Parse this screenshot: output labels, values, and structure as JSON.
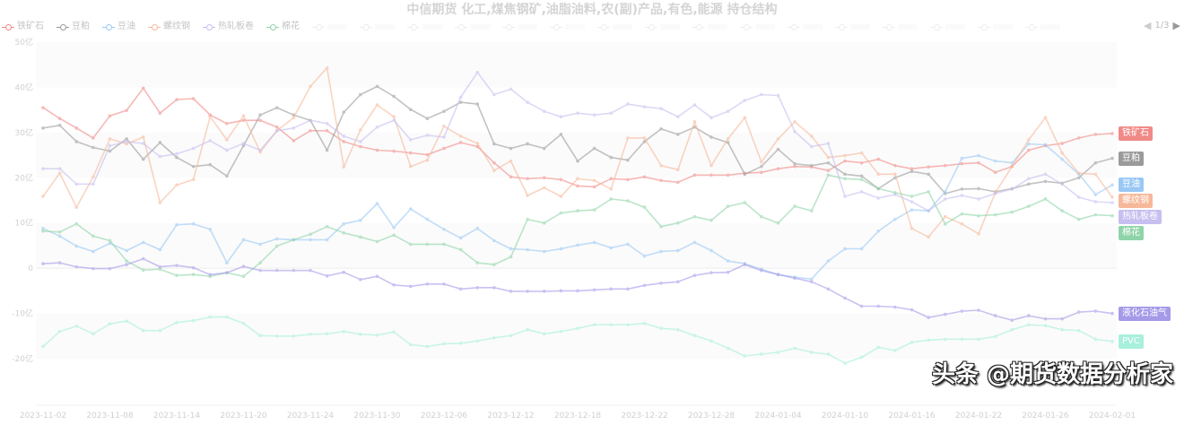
{
  "chart_data": {
    "type": "line",
    "title": "中信期货 化工,煤焦钢矿,油脂油料,农(副)产品,有色,能源 持仓结构",
    "legend_page": "1/3",
    "legend_position": "top",
    "ylim": [
      -20,
      50
    ],
    "y_unit": "亿",
    "y_ticks": [
      "50亿",
      "40亿",
      "30亿",
      "20亿",
      "10亿",
      "0",
      "-10亿",
      "-20亿"
    ],
    "y_tick_values": [
      50,
      40,
      30,
      20,
      10,
      0,
      -10,
      -20
    ],
    "x_tick_labels": [
      "2023-11-02",
      "2023-11-08",
      "2023-11-14",
      "2023-11-20",
      "2023-11-24",
      "2023-11-30",
      "2023-12-06",
      "2023-12-12",
      "2023-12-18",
      "2023-12-22",
      "2023-12-28",
      "2024-01-04",
      "2024-01-10",
      "2024-01-16",
      "2024-01-22",
      "2024-01-26",
      "2024-02-01"
    ],
    "x": [
      "2023-11-02",
      "2023-11-03",
      "2023-11-06",
      "2023-11-07",
      "2023-11-08",
      "2023-11-09",
      "2023-11-10",
      "2023-11-13",
      "2023-11-14",
      "2023-11-15",
      "2023-11-16",
      "2023-11-17",
      "2023-11-20",
      "2023-11-21",
      "2023-11-22",
      "2023-11-23",
      "2023-11-24",
      "2023-11-27",
      "2023-11-28",
      "2023-11-29",
      "2023-11-30",
      "2023-12-01",
      "2023-12-04",
      "2023-12-05",
      "2023-12-06",
      "2023-12-07",
      "2023-12-08",
      "2023-12-11",
      "2023-12-12",
      "2023-12-13",
      "2023-12-14",
      "2023-12-15",
      "2023-12-18",
      "2023-12-19",
      "2023-12-20",
      "2023-12-21",
      "2023-12-22",
      "2023-12-25",
      "2023-12-26",
      "2023-12-27",
      "2023-12-28",
      "2023-12-29",
      "2024-01-02",
      "2024-01-03",
      "2024-01-04",
      "2024-01-05",
      "2024-01-08",
      "2024-01-09",
      "2024-01-10",
      "2024-01-11",
      "2024-01-12",
      "2024-01-15",
      "2024-01-16",
      "2024-01-17",
      "2024-01-18",
      "2024-01-19",
      "2024-01-22",
      "2024-01-23",
      "2024-01-24",
      "2024-01-25",
      "2024-01-26",
      "2024-01-29",
      "2024-01-30",
      "2024-01-31",
      "2024-02-01"
    ],
    "grid": false,
    "series": [
      {
        "name": "铁矿石",
        "color": "#f08a87",
        "end_label": true,
        "values": [
          35.5,
          33.1,
          31.0,
          28.8,
          33.7,
          34.9,
          39.8,
          34.3,
          37.3,
          37.5,
          33.9,
          32.0,
          32.7,
          32.7,
          31.2,
          28.2,
          30.4,
          30.4,
          28.0,
          26.9,
          26.1,
          25.9,
          25.5,
          25.1,
          26.5,
          27.8,
          26.9,
          23.3,
          20.2,
          19.8,
          20.0,
          19.6,
          18.2,
          18.0,
          19.8,
          19.6,
          20.2,
          19.4,
          19.0,
          20.6,
          20.6,
          20.6,
          21.0,
          21.2,
          22.0,
          22.5,
          22.4,
          21.6,
          23.7,
          23.3,
          24.1,
          22.7,
          22.0,
          22.4,
          22.7,
          23.1,
          23.3,
          21.2,
          22.5,
          26.1,
          27.1,
          27.6,
          28.8,
          29.6,
          29.8
        ]
      },
      {
        "name": "豆粕",
        "color": "#9a9a9a",
        "end_label": true,
        "values": [
          31.0,
          31.6,
          28.0,
          26.7,
          25.9,
          28.6,
          24.1,
          27.8,
          24.5,
          22.5,
          22.9,
          20.4,
          27.1,
          33.9,
          35.5,
          33.9,
          32.7,
          26.1,
          34.5,
          38.4,
          40.2,
          38.0,
          35.1,
          33.1,
          34.7,
          36.7,
          36.3,
          27.5,
          26.5,
          27.5,
          26.5,
          29.6,
          23.7,
          26.5,
          24.5,
          23.9,
          28.0,
          30.8,
          29.6,
          31.2,
          29.0,
          27.8,
          20.8,
          22.5,
          26.3,
          23.1,
          22.7,
          23.3,
          20.8,
          20.4,
          17.6,
          20.0,
          21.4,
          20.8,
          16.5,
          17.5,
          17.6,
          16.9,
          17.6,
          18.6,
          19.2,
          18.8,
          20.0,
          23.3,
          24.3
        ]
      },
      {
        "name": "豆油",
        "color": "#9ac8f5",
        "end_label": true,
        "values": [
          8.8,
          7.1,
          4.9,
          3.7,
          5.5,
          3.9,
          5.7,
          4.1,
          9.6,
          9.8,
          8.6,
          1.2,
          6.3,
          5.3,
          6.5,
          6.3,
          6.3,
          6.3,
          9.8,
          10.6,
          14.3,
          9.0,
          13.1,
          10.8,
          8.6,
          6.7,
          8.8,
          6.1,
          4.3,
          4.1,
          3.7,
          4.3,
          5.1,
          5.7,
          4.5,
          5.3,
          2.7,
          3.7,
          3.9,
          5.7,
          3.9,
          1.6,
          1.0,
          -0.2,
          -1.4,
          -2.0,
          -2.4,
          1.6,
          4.3,
          4.3,
          8.2,
          10.8,
          12.9,
          12.7,
          16.9,
          24.3,
          24.9,
          23.7,
          23.3,
          27.5,
          27.3,
          24.1,
          20.8,
          16.3,
          18.4
        ]
      },
      {
        "name": "螺纹钢",
        "color": "#f7b89a",
        "end_label": true,
        "values": [
          15.9,
          21.0,
          13.5,
          20.2,
          28.6,
          27.5,
          29.0,
          14.5,
          18.4,
          19.6,
          33.5,
          28.4,
          33.7,
          25.7,
          30.4,
          33.3,
          40.2,
          44.3,
          22.4,
          30.6,
          36.1,
          33.5,
          22.5,
          23.9,
          31.4,
          29.2,
          27.6,
          21.6,
          23.7,
          16.1,
          17.8,
          15.9,
          19.8,
          19.4,
          17.5,
          28.8,
          28.8,
          22.7,
          21.8,
          32.4,
          22.7,
          28.6,
          33.3,
          23.5,
          28.6,
          32.4,
          29.2,
          24.5,
          24.9,
          25.5,
          20.8,
          20.8,
          8.8,
          6.9,
          11.4,
          9.8,
          7.6,
          16.7,
          22.5,
          28.4,
          33.3,
          25.5,
          21.0,
          20.8,
          15.7
        ]
      },
      {
        "name": "热轧板卷",
        "color": "#c6bff0",
        "end_label": true,
        "values": [
          22.0,
          22.0,
          18.6,
          18.6,
          27.1,
          28.0,
          27.6,
          24.7,
          25.3,
          26.5,
          28.2,
          26.1,
          27.6,
          26.1,
          30.4,
          31.0,
          32.7,
          32.0,
          29.2,
          28.0,
          31.2,
          32.7,
          28.4,
          29.4,
          29.0,
          37.8,
          43.3,
          38.4,
          39.6,
          36.7,
          34.7,
          33.5,
          34.3,
          33.9,
          34.3,
          36.3,
          35.7,
          35.3,
          33.5,
          36.1,
          33.3,
          34.7,
          37.1,
          38.4,
          38.2,
          30.2,
          26.9,
          27.6,
          15.9,
          16.9,
          15.5,
          16.3,
          14.7,
          12.7,
          15.3,
          16.1,
          15.3,
          16.5,
          17.5,
          19.8,
          20.8,
          18.6,
          15.7,
          14.7,
          14.5
        ]
      },
      {
        "name": "棉花",
        "color": "#8fd4a8",
        "end_label": true,
        "values": [
          8.2,
          8.0,
          9.8,
          7.1,
          6.1,
          1.6,
          -0.4,
          -0.2,
          -1.6,
          -1.4,
          -1.8,
          -1.0,
          -1.8,
          1.2,
          4.9,
          6.3,
          7.5,
          9.2,
          7.8,
          6.9,
          5.9,
          7.3,
          5.3,
          5.3,
          5.3,
          4.1,
          1.2,
          0.8,
          2.5,
          10.8,
          10.0,
          12.2,
          12.7,
          12.9,
          15.3,
          14.9,
          13.5,
          9.2,
          10.0,
          11.4,
          10.6,
          13.7,
          14.5,
          11.4,
          10.0,
          13.7,
          12.7,
          20.6,
          19.8,
          19.6,
          17.6,
          16.7,
          15.9,
          16.9,
          9.8,
          12.0,
          11.6,
          11.8,
          12.4,
          13.7,
          15.3,
          12.7,
          10.8,
          11.8,
          11.6
        ]
      },
      {
        "name": "液化石油气",
        "color": "#a59ae8",
        "end_label": true,
        "values": [
          1.0,
          1.2,
          0.3,
          -0.1,
          -0.1,
          0.8,
          2.1,
          0.3,
          0.6,
          0.1,
          -1.4,
          -1.0,
          0.4,
          -0.5,
          -0.5,
          -0.5,
          -0.5,
          -1.7,
          -0.9,
          -2.5,
          -1.8,
          -3.7,
          -4.0,
          -3.5,
          -3.5,
          -4.6,
          -4.3,
          -4.3,
          -5.1,
          -5.1,
          -5.1,
          -5.0,
          -5.0,
          -4.8,
          -4.6,
          -4.6,
          -3.8,
          -3.3,
          -3.0,
          -1.6,
          -1.0,
          -0.9,
          0.8,
          -0.5,
          -1.4,
          -2.2,
          -3.0,
          -4.6,
          -6.6,
          -8.4,
          -8.4,
          -8.6,
          -9.2,
          -10.9,
          -10.2,
          -9.5,
          -9.3,
          -10.5,
          -11.5,
          -10.5,
          -11.2,
          -11.2,
          -9.7,
          -9.5,
          -10.0
        ]
      },
      {
        "name": "PVC",
        "color": "#a8f0dc",
        "end_label": true,
        "values": [
          -17.3,
          -14.0,
          -12.8,
          -14.5,
          -12.3,
          -11.7,
          -13.8,
          -13.8,
          -12.0,
          -11.6,
          -10.8,
          -10.8,
          -12.2,
          -14.9,
          -15.0,
          -15.0,
          -14.6,
          -14.5,
          -14.0,
          -14.6,
          -14.8,
          -14.1,
          -16.9,
          -17.3,
          -16.7,
          -16.6,
          -16.1,
          -15.4,
          -14.9,
          -13.6,
          -14.5,
          -14.0,
          -13.3,
          -12.5,
          -12.5,
          -12.5,
          -12.2,
          -13.3,
          -13.6,
          -14.9,
          -16.1,
          -17.7,
          -19.4,
          -19.0,
          -18.6,
          -17.7,
          -18.6,
          -19.0,
          -21.0,
          -19.7,
          -17.5,
          -18.2,
          -16.4,
          -15.9,
          -15.7,
          -15.7,
          -15.7,
          -15.1,
          -13.6,
          -12.5,
          -12.7,
          -13.6,
          -13.8,
          -15.7,
          -16.2
        ]
      }
    ]
  },
  "legend": {
    "items": [
      "铁矿石",
      "豆粕",
      "豆油",
      "螺纹钢",
      "热轧板卷",
      "棉花"
    ],
    "faded_count": 16
  },
  "watermark": "头条 @期货数据分析家"
}
